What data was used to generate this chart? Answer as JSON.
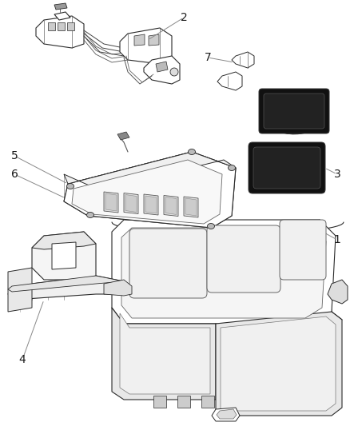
{
  "bg_color": "#ffffff",
  "line_color": "#2a2a2a",
  "label_color": "#1a1a1a",
  "leader_color": "#888888",
  "figsize": [
    4.38,
    5.33
  ],
  "dpi": 100,
  "parts": {
    "pad_color": "#1a1a1a",
    "pad_fill": "#222222",
    "part_line": "#2a2a2a",
    "shadow": "#aaaaaa"
  }
}
